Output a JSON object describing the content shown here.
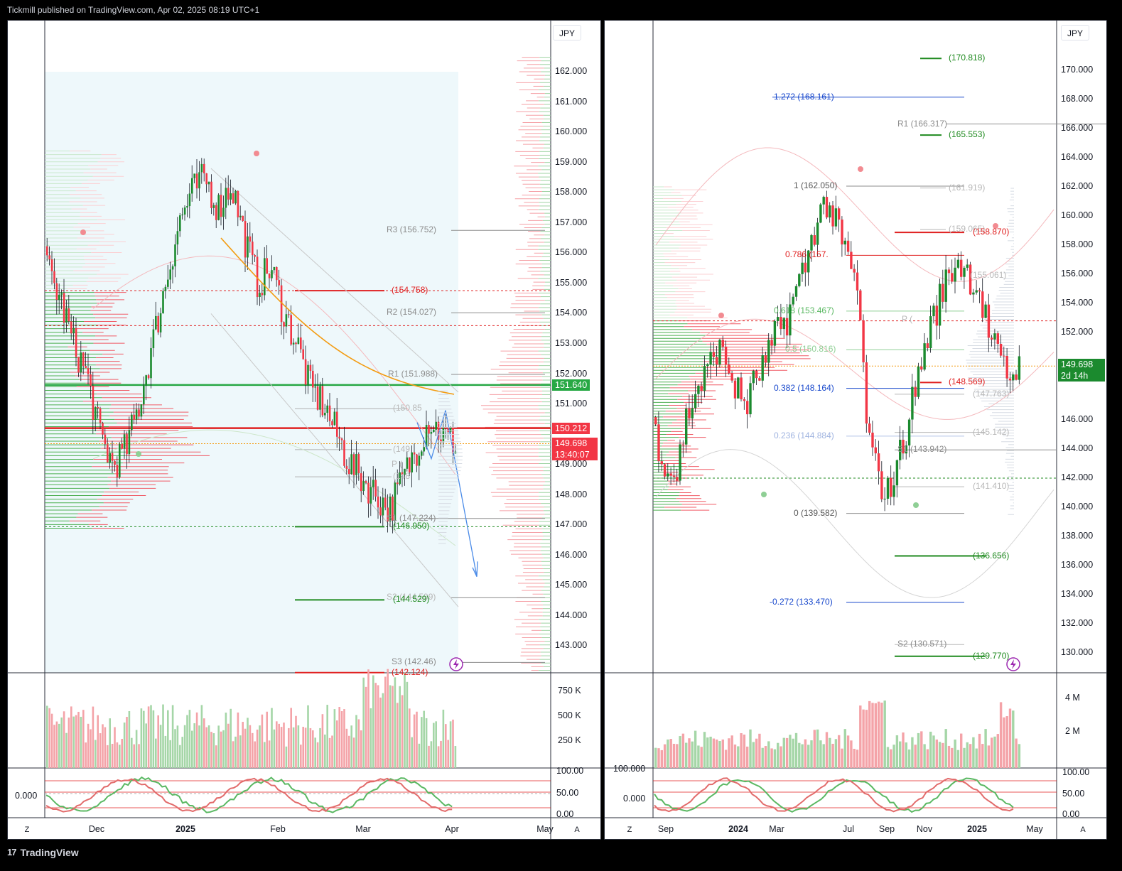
{
  "header": {
    "publish_line": "Tickmill published on TradingView.com, Apr 02, 2025 08:19 UTC+1"
  },
  "footer": {
    "brand": "TradingView",
    "logo_glyph": "17"
  },
  "colors": {
    "bull": "#1b8a2e",
    "bear": "#f23645",
    "fib_blue": "#1848cc",
    "pivot_gray": "#8d8d8d",
    "vwap_orange": "#f39c12",
    "support_green": "#1f8a1f",
    "resistance_red": "#e02020"
  },
  "left_chart": {
    "currency_label": "JPY",
    "price_ticks": [
      "162.000",
      "161.000",
      "160.000",
      "159.000",
      "158.000",
      "157.000",
      "156.000",
      "155.000",
      "154.000",
      "153.000",
      "152.000",
      "151.000",
      "149.000",
      "148.000",
      "147.000",
      "146.000",
      "145.000",
      "144.000",
      "143.000"
    ],
    "date_ticks": [
      "Dec",
      "2025",
      "Feb",
      "Mar",
      "Apr",
      "May"
    ],
    "bold_date_ticks": [
      "2025"
    ],
    "volume_ticks": [
      "750 K",
      "500 K",
      "250 K"
    ],
    "osc_ticks_right": [
      "100.00",
      "50.00",
      "0.00"
    ],
    "osc_tick_left": "0.000",
    "price_tags": {
      "green_level": "151.640",
      "red_level": "150.212",
      "last_price": "149.698",
      "countdown": "13:40:07"
    },
    "pivot_labels": [
      "R3 (156.752)",
      "R2 (154.027)",
      "R1 (151.988)",
      "(150.85",
      "(149",
      "P (",
      "(148",
      "S1 (147.224)",
      "(146.950)",
      "S2 (144.599)",
      "(144.529)",
      "S3 (142.46)",
      "(142.124)",
      "(154.758)"
    ],
    "corner_left": "Z",
    "corner_right": "A"
  },
  "right_chart": {
    "currency_label": "JPY",
    "price_ticks": [
      "170.000",
      "168.000",
      "166.000",
      "164.000",
      "162.000",
      "160.000",
      "158.000",
      "156.000",
      "154.000",
      "152.000",
      "146.000",
      "144.000",
      "142.000",
      "140.000",
      "138.000",
      "136.000",
      "134.000",
      "132.000",
      "130.000"
    ],
    "date_ticks": [
      "Sep",
      "2024",
      "Mar",
      "Jul",
      "Sep",
      "Nov",
      "2025",
      "May"
    ],
    "bold_date_ticks": [
      "2024",
      "2025"
    ],
    "volume_ticks": [
      "4 M",
      "2 M"
    ],
    "osc_ticks_right": [
      "100.00",
      "50.00",
      "0.00"
    ],
    "osc_ticks_left": [
      "100.000",
      "0.000"
    ],
    "price_tags": {
      "last_price": "149.698",
      "countdown": "2d 14h"
    },
    "fib_labels": [
      "1.272 (168.161)",
      "1 (162.050)",
      "0.786 (157.",
      "0.618 (153.467)",
      "0.5 (150.816)",
      "0.382 (148.164)",
      "0.236 (144.884)",
      "0 (139.582)",
      "-0.272 (133.470)"
    ],
    "pivot_labels": [
      "(170.818)",
      "R1 (166.317)",
      "(165.553)",
      "(161.919)",
      "(159.065)",
      "(158.870)",
      "(155.061)",
      "P (",
      "(148.569)",
      "(147.763)",
      "(145.142)",
      "S1 (143.942)",
      "(141.410)",
      "(136.656)",
      "S2 (130.571)",
      "(129.770)"
    ],
    "corner_left": "Z",
    "corner_right": "A"
  }
}
